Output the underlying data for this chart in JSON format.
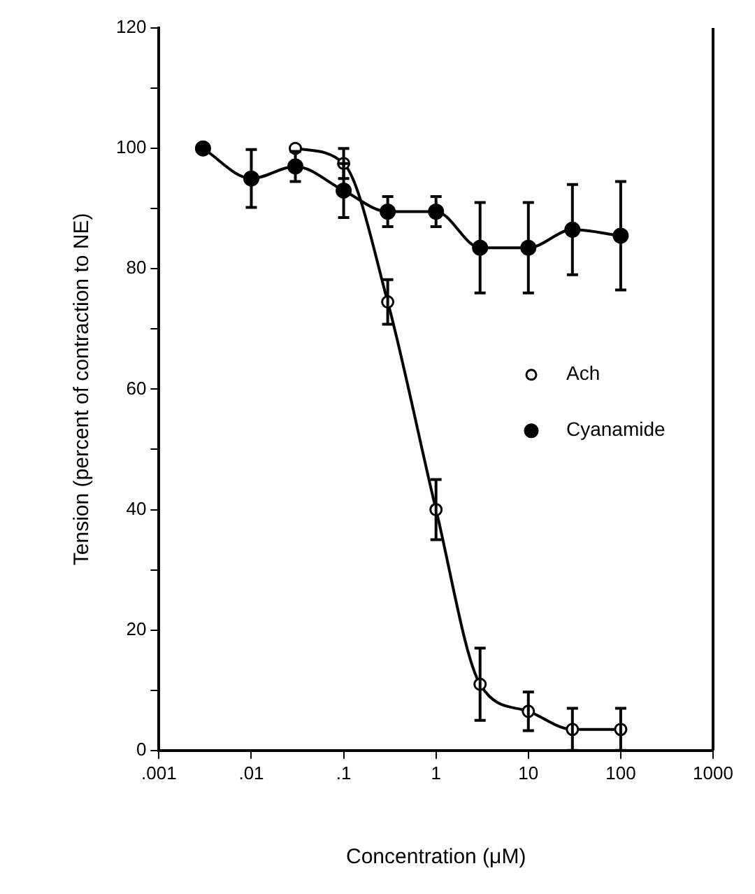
{
  "chart_data": {
    "type": "line",
    "xlabel": "Concentration (μM)",
    "ylabel": "Tension (percent of contraction to NE)",
    "log": "x",
    "xlim": [
      0.001,
      1000
    ],
    "xticks": [
      {
        "value": 0.001,
        "label": ".001"
      },
      {
        "value": 0.01,
        "label": ".01"
      },
      {
        "value": 0.1,
        "label": ".1"
      },
      1,
      10,
      100,
      1000
    ],
    "ylim": [
      0,
      120
    ],
    "yticks": [
      0,
      {
        "value": 10,
        "label": null
      },
      20,
      {
        "value": 30,
        "label": null
      },
      40,
      {
        "value": 50,
        "label": null
      },
      60,
      {
        "value": 70,
        "label": null
      },
      80,
      {
        "value": 90,
        "label": null
      },
      100,
      {
        "value": 110,
        "label": null
      },
      120
    ],
    "grid": false,
    "legend": "right",
    "marker": "circle",
    "line_style": "solid",
    "series": [
      {
        "name": "Ach",
        "color": "#000000",
        "x": [
          0.03,
          0.1,
          0.3,
          1,
          3,
          10,
          30,
          100
        ],
        "values": [
          100,
          97.5,
          74.5,
          40,
          11,
          6.5,
          3.5,
          3.5
        ],
        "errors": [
          null,
          2.5,
          3.7,
          5,
          6,
          3.2,
          3.5,
          3.5
        ]
      },
      {
        "name": "Cyanamide",
        "color": "#000000",
        "x": [
          0.003,
          0.01,
          0.03,
          0.1,
          0.3,
          1,
          3,
          10,
          30,
          100
        ],
        "values": [
          100,
          95,
          97,
          93,
          89.5,
          89.5,
          83.5,
          83.5,
          86.5,
          85.5
        ],
        "errors": [
          null,
          4.8,
          2.5,
          4.5,
          2.5,
          2.5,
          7.5,
          7.5,
          7.5,
          9
        ]
      }
    ]
  }
}
